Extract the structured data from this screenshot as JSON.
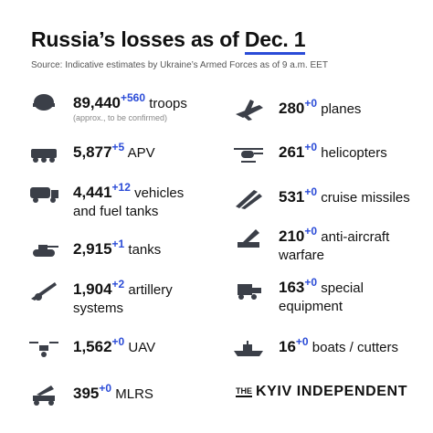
{
  "header": {
    "title": "Russia’s losses as of",
    "title_date": "Dec. 1",
    "source": "Source: Indicative estimates by Ukraine’s Armed Forces as of 9 a.m. EET"
  },
  "items": [
    {
      "number": "89,440",
      "change": "+560",
      "label": [
        "troops"
      ],
      "note": "(approx., to be confirmed)"
    },
    {
      "number": "5,877",
      "change": "+5",
      "label": [
        "APV"
      ]
    },
    {
      "number": "4,441",
      "change": "+12",
      "label": [
        "vehicles",
        "and fuel tanks"
      ]
    },
    {
      "number": "2,915",
      "change": "+1",
      "label": [
        "tanks"
      ]
    },
    {
      "number": "1,904",
      "change": "+2",
      "label": [
        "artillery",
        "systems"
      ]
    },
    {
      "number": "1,562",
      "change": "+0",
      "label": [
        "UAV"
      ]
    },
    {
      "number": "395",
      "change": "+0",
      "label": [
        "MLRS"
      ]
    },
    {
      "number": "280",
      "change": "+0",
      "label": [
        "planes"
      ]
    },
    {
      "number": "261",
      "change": "+0",
      "label": [
        "helicopters"
      ]
    },
    {
      "number": "531",
      "change": "+0",
      "label": [
        "cruise missiles"
      ]
    },
    {
      "number": "210",
      "change": "+0",
      "label": [
        "anti-aircraft",
        "warfare"
      ]
    },
    {
      "number": "163",
      "change": "+0",
      "label": [
        "special",
        "equipment"
      ]
    },
    {
      "number": "16",
      "change": "+0",
      "label": [
        "boats / cutters"
      ]
    }
  ],
  "logo": {
    "the": "THE",
    "name": "KYIV INDEPENDENT"
  }
}
